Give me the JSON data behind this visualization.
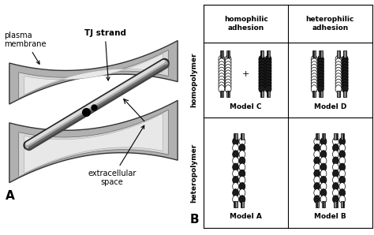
{
  "fig_width": 4.74,
  "fig_height": 2.98,
  "dpi": 100,
  "bg_color": "#ffffff",
  "left_panel_label": "A",
  "right_panel_label": "B",
  "col_header_1": "homophilic\nadhesion",
  "col_header_2": "heterophilic\nadhesion",
  "row_header_1": "homopolymer",
  "row_header_2": "heteropolymer",
  "model_labels": [
    "Model A",
    "Model B",
    "Model C",
    "Model D"
  ],
  "plasma_membrane_label": "plasma\nmembrane",
  "tj_strand_label": "TJ strand",
  "extracellular_label": "extracellular\nspace",
  "sheet_outer_color": "#b0b0b0",
  "sheet_inner_color": "#d8d8d8",
  "sheet_lightest": "#e8e8e8",
  "sheet_edge_color": "#555555",
  "strand_dark": "#333333",
  "strand_mid": "#888888",
  "strand_light": "#cccccc",
  "white_circle": "#ffffff",
  "dark_circle": "#1a1a1a",
  "tm_color": "#888888"
}
